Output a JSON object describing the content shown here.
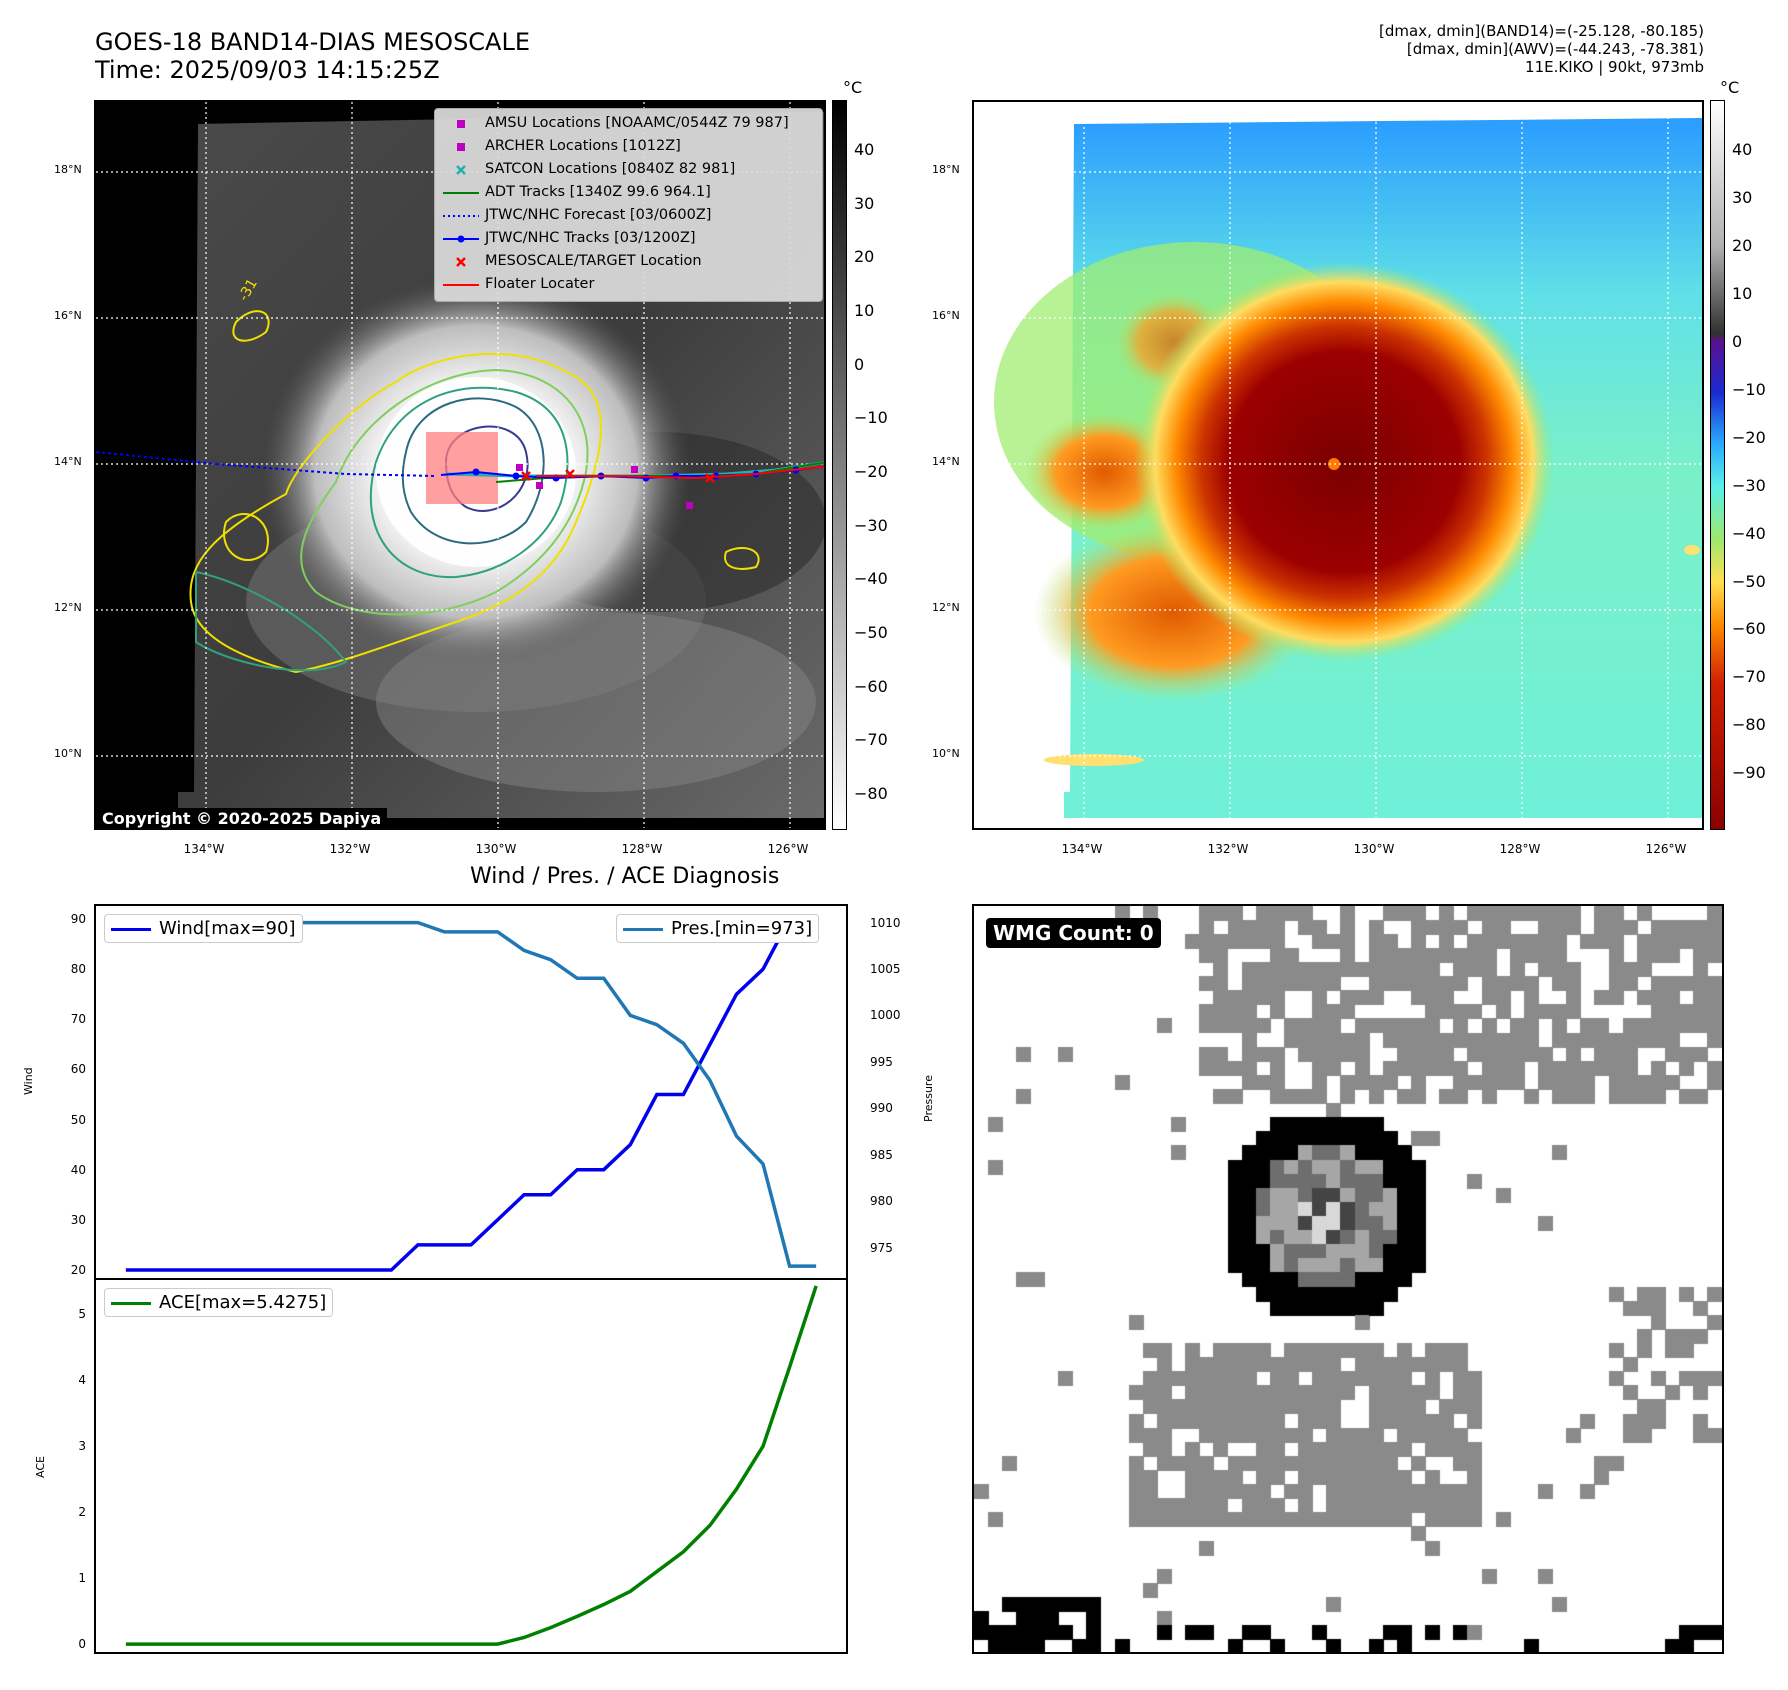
{
  "header": {
    "title_line1": "GOES-18 BAND14-DIAS MESOSCALE",
    "title_line2": "Time: 2025/09/03 14:15:25Z",
    "info_line1": "[dmax, dmin](BAND14)=(-25.128, -80.185)",
    "info_line2": "[dmax, dmin](AWV)=(-44.243, -78.381)",
    "info_line3": "11E.KIKO | 90kt, 973mb"
  },
  "map": {
    "lat_labels": [
      "18°N",
      "16°N",
      "14°N",
      "12°N",
      "10°N"
    ],
    "lon_labels": [
      "134°W",
      "132°W",
      "130°W",
      "128°W",
      "126°W"
    ],
    "copyright": "Copyright © 2020-2025 Dapiya",
    "contour_label": "-31"
  },
  "legend": {
    "items": [
      {
        "label": "AMSU Locations [NOAAMC/0544Z 79 987]",
        "color": "#c000c0"
      },
      {
        "label": "ARCHER Locations [1012Z]",
        "color": "#c000c0"
      },
      {
        "label": "SATCON Locations [0840Z 82 981]",
        "color": "#20b0b0"
      },
      {
        "label": "ADT Tracks [1340Z 99.6 964.1]",
        "color": "#008000"
      },
      {
        "label": "JTWC/NHC Forecast [03/0600Z]",
        "color": "#0000ff"
      },
      {
        "label": "JTWC/NHC Tracks [03/1200Z]",
        "color": "#0000ff"
      },
      {
        "label": "MESOSCALE/TARGET Location",
        "color": "#ff0000"
      },
      {
        "label": "Floater Locater",
        "color": "#ff0000"
      }
    ]
  },
  "colorbar_left": {
    "unit": "°C",
    "ticks": [
      "40",
      "30",
      "20",
      "10",
      "0",
      "−10",
      "−20",
      "−30",
      "−40",
      "−50",
      "−60",
      "−70",
      "−80"
    ]
  },
  "colorbar_right": {
    "unit": "°C",
    "ticks": [
      "40",
      "30",
      "20",
      "10",
      "0",
      "−10",
      "−20",
      "−30",
      "−40",
      "−50",
      "−60",
      "−70",
      "−80",
      "−90"
    ]
  },
  "wmg": {
    "label": "WMG Count: 0"
  },
  "chart_data": [
    {
      "type": "line",
      "title": "Wind / Pres. / ACE Diagnosis",
      "ylabel": "Wind",
      "ylabel_right": "Pressure",
      "ylim": [
        18,
        93
      ],
      "ylim_right": [
        971.5,
        1012
      ],
      "yticks": [
        20,
        30,
        40,
        50,
        60,
        70,
        80,
        90
      ],
      "yticks_right": [
        975,
        980,
        985,
        990,
        995,
        1000,
        1005,
        1010
      ],
      "x": [
        0,
        1,
        2,
        3,
        4,
        5,
        6,
        7,
        8,
        9,
        10,
        11,
        12,
        13,
        14,
        15,
        16,
        17,
        18,
        19,
        20,
        21,
        22,
        23,
        24,
        25,
        26
      ],
      "series": [
        {
          "name": "Wind[max=90]",
          "color": "#0000ee",
          "values": [
            20,
            20,
            20,
            20,
            20,
            20,
            20,
            20,
            20,
            20,
            20,
            25,
            25,
            25,
            30,
            35,
            35,
            40,
            40,
            45,
            55,
            55,
            65,
            75,
            80,
            90,
            90
          ]
        },
        {
          "name": "Pres.[min=973]",
          "color": "#1f77b4",
          "values": [
            1010,
            1010,
            1010,
            1010,
            1010,
            1010,
            1010,
            1010,
            1010,
            1010,
            1010,
            1010,
            1009,
            1009,
            1009,
            1007,
            1006,
            1004,
            1004,
            1000,
            999,
            997,
            993,
            987,
            984,
            973,
            973
          ]
        }
      ]
    },
    {
      "type": "line",
      "ylabel": "ACE",
      "ylim": [
        -0.15,
        5.55
      ],
      "yticks": [
        0,
        1,
        2,
        3,
        4,
        5
      ],
      "x": [
        0,
        1,
        2,
        3,
        4,
        5,
        6,
        7,
        8,
        9,
        10,
        11,
        12,
        13,
        14,
        15,
        16,
        17,
        18,
        19,
        20,
        21,
        22,
        23,
        24,
        25,
        26
      ],
      "series": [
        {
          "name": "ACE[max=5.4275]",
          "color": "#008000",
          "values": [
            0,
            0,
            0,
            0,
            0,
            0,
            0,
            0,
            0,
            0,
            0,
            0,
            0,
            0,
            0,
            0.1,
            0.25,
            0.42,
            0.6,
            0.8,
            1.1,
            1.4,
            1.8,
            2.35,
            3.0,
            4.2,
            5.43
          ]
        }
      ]
    }
  ]
}
